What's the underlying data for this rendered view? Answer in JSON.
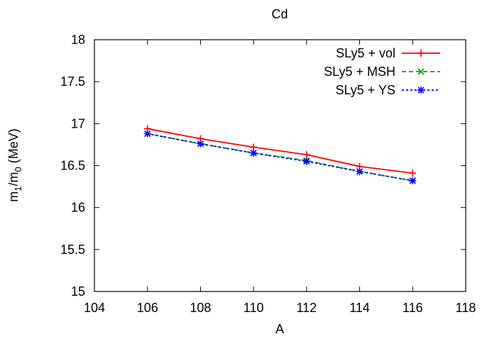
{
  "chart_data": {
    "type": "line",
    "title": "Cd",
    "xlabel": "A",
    "ylabel": {
      "main": "m",
      "sub1": "1",
      "slash": "/m",
      "sub0": "0",
      "unit": " (MeV)"
    },
    "xlim": [
      104,
      118
    ],
    "ylim": [
      15,
      18
    ],
    "xticks": [
      104,
      106,
      108,
      110,
      112,
      114,
      116,
      118
    ],
    "yticks": [
      15,
      15.5,
      16,
      16.5,
      17,
      17.5,
      18
    ],
    "xtick_labels": [
      "104",
      "106",
      "108",
      "110",
      "112",
      "114",
      "116",
      "118"
    ],
    "ytick_labels": [
      "15",
      "15.5",
      "16",
      "16.5",
      "17",
      "17.5",
      "18"
    ],
    "grid": false,
    "legend_position": "top-right",
    "x": [
      106,
      108,
      110,
      112,
      114,
      116
    ],
    "series": [
      {
        "name": "SLy5 + vol",
        "values": [
          16.94,
          16.82,
          16.72,
          16.63,
          16.49,
          16.41
        ],
        "color": "#ff0000",
        "dash": "solid",
        "marker": "plus"
      },
      {
        "name": "SLy5 + MSH",
        "values": [
          16.88,
          16.76,
          16.65,
          16.56,
          16.43,
          16.32
        ],
        "color": "#00a000",
        "dash": "dashed",
        "marker": "cross"
      },
      {
        "name": "SLy5 + YS",
        "values": [
          16.88,
          16.76,
          16.65,
          16.55,
          16.43,
          16.32
        ],
        "color": "#0000ff",
        "dash": "dotted",
        "marker": "star"
      }
    ]
  }
}
